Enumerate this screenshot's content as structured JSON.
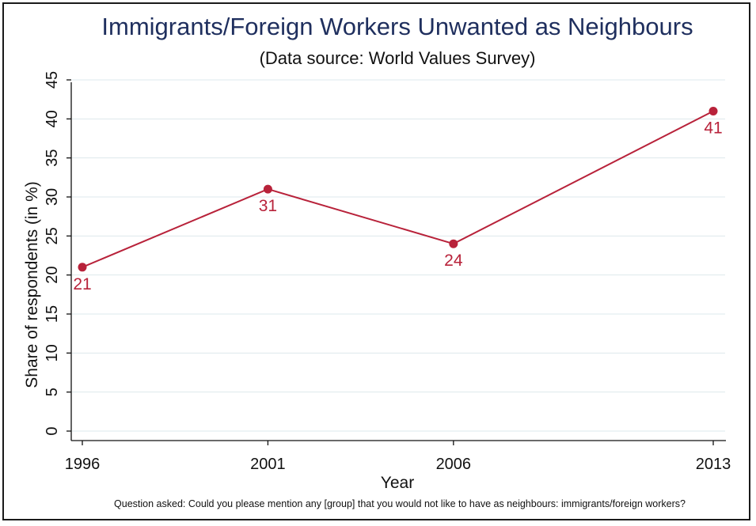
{
  "chart_data": {
    "type": "line",
    "title": "Immigrants/Foreign Workers Unwanted as Neighbours",
    "subtitle": "(Data source: World Values Survey)",
    "xlabel": "Year",
    "ylabel": "Share of respondents (in %)",
    "note": "Question asked: Could you please mention any [group] that you would not like to have as neighbours: immigrants/foreign workers?",
    "x": [
      1996,
      2001,
      2006,
      2013
    ],
    "x_tick_labels": [
      "1996",
      "2001",
      "2006",
      "2013"
    ],
    "values": [
      21,
      31,
      24,
      41
    ],
    "data_labels": [
      "21",
      "31",
      "24",
      "41"
    ],
    "ylim": [
      0,
      45
    ],
    "y_ticks": [
      0,
      5,
      10,
      15,
      20,
      25,
      30,
      35,
      40,
      45
    ],
    "y_tick_labels": [
      "0",
      "5",
      "10",
      "15",
      "20",
      "25",
      "30",
      "35",
      "40",
      "45"
    ],
    "xlim": [
      1996,
      2013
    ],
    "grid": true,
    "legend": "none",
    "colors": {
      "line": "#b8223a",
      "grid": "#dde8ec",
      "title": "#1f2f5e"
    }
  }
}
